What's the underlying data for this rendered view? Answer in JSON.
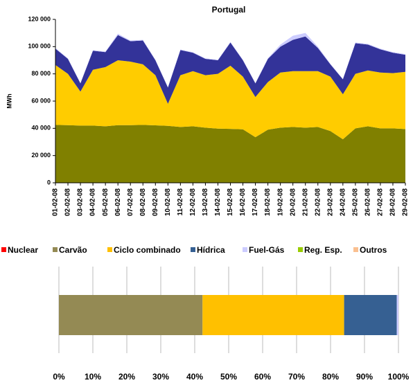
{
  "chart_data": [
    {
      "type": "area",
      "title": "Portugal",
      "ylabel": "MWh",
      "categories": [
        "01-02-08",
        "02-02-08",
        "03-02-08",
        "04-02-08",
        "05-02-08",
        "06-02-08",
        "07-02-08",
        "08-02-08",
        "09-02-08",
        "10-02-08",
        "11-02-08",
        "12-02-08",
        "13-02-08",
        "14-02-08",
        "15-02-08",
        "16-02-08",
        "17-02-08",
        "18-02-08",
        "19-02-08",
        "20-02-08",
        "21-02-08",
        "22-02-08",
        "23-02-08",
        "24-02-08",
        "25-02-08",
        "26-02-08",
        "27-02-08",
        "28-02-08",
        "29-02-08"
      ],
      "stacked": true,
      "series": [
        {
          "color": "#808000",
          "values": [
            42500,
            42300,
            42000,
            42000,
            41500,
            42300,
            42300,
            42500,
            42200,
            41800,
            41000,
            41500,
            40500,
            39800,
            39600,
            39300,
            33500,
            39000,
            40500,
            41000,
            40500,
            41000,
            38000,
            32000,
            40000,
            41500,
            40000,
            40000,
            39500
          ]
        },
        {
          "color": "#ffcc00",
          "values": [
            44000,
            37700,
            25000,
            41000,
            43500,
            47700,
            46700,
            44500,
            36800,
            16200,
            38000,
            40500,
            38500,
            40200,
            46400,
            38700,
            29500,
            35000,
            40500,
            41000,
            41500,
            41000,
            40000,
            33000,
            40000,
            41000,
            41000,
            40500,
            42000
          ]
        },
        {
          "color": "#333399",
          "values": [
            12000,
            11000,
            6000,
            14000,
            11000,
            18500,
            15000,
            17500,
            11000,
            12000,
            18500,
            13500,
            12000,
            10000,
            17000,
            12000,
            10000,
            17000,
            19000,
            23000,
            25500,
            17000,
            9000,
            11000,
            22500,
            19000,
            17000,
            15000,
            12500
          ]
        },
        {
          "color": "#ccccff",
          "values": [
            500,
            400,
            300,
            400,
            400,
            1000,
            500,
            500,
            400,
            300,
            400,
            400,
            400,
            400,
            500,
            400,
            300,
            500,
            1500,
            3000,
            2500,
            1000,
            400,
            300,
            500,
            500,
            500,
            500,
            500
          ]
        }
      ],
      "ylim": [
        0,
        120000
      ],
      "yticks": [
        0,
        {
          "value": 20000,
          "label": "20 000"
        },
        {
          "value": 40000,
          "label": "40 000"
        },
        {
          "value": 60000,
          "label": "60 000"
        },
        {
          "value": 80000,
          "label": "80 000"
        },
        {
          "value": 100000,
          "label": "100 000"
        },
        {
          "value": 120000,
          "label": "120 000"
        }
      ]
    },
    {
      "type": "hbar",
      "stacked": true,
      "legend": "top",
      "series": [
        {
          "name": "Nuclear",
          "color": "#ff0000",
          "values": [
            0
          ]
        },
        {
          "name": "Carvão",
          "color": "#948a54",
          "values": [
            42.3
          ]
        },
        {
          "name": "Ciclo combinado",
          "color": "#ffc000",
          "values": [
            41.7
          ]
        },
        {
          "name": "Hídrica",
          "color": "#366092",
          "values": [
            15.5
          ]
        },
        {
          "name": "Fuel-Gás",
          "color": "#ccccff",
          "values": [
            0.5
          ]
        },
        {
          "name": "Reg. Esp.",
          "color": "#99cc00",
          "values": [
            0
          ]
        },
        {
          "name": "Outros",
          "color": "#fac090",
          "values": [
            0
          ]
        }
      ],
      "xlim": [
        0,
        100
      ],
      "xticks": [
        {
          "value": 0,
          "label": "0%"
        },
        {
          "value": 10,
          "label": "10%"
        },
        {
          "value": 20,
          "label": "20%"
        },
        {
          "value": 30,
          "label": "30%"
        },
        {
          "value": 40,
          "label": "40%"
        },
        {
          "value": 50,
          "label": "50%"
        },
        {
          "value": 60,
          "label": "60%"
        },
        {
          "value": 70,
          "label": "70%"
        },
        {
          "value": 80,
          "label": "80%"
        },
        {
          "value": 90,
          "label": "90%"
        },
        {
          "value": 100,
          "label": "100%"
        }
      ],
      "grid": true
    }
  ]
}
